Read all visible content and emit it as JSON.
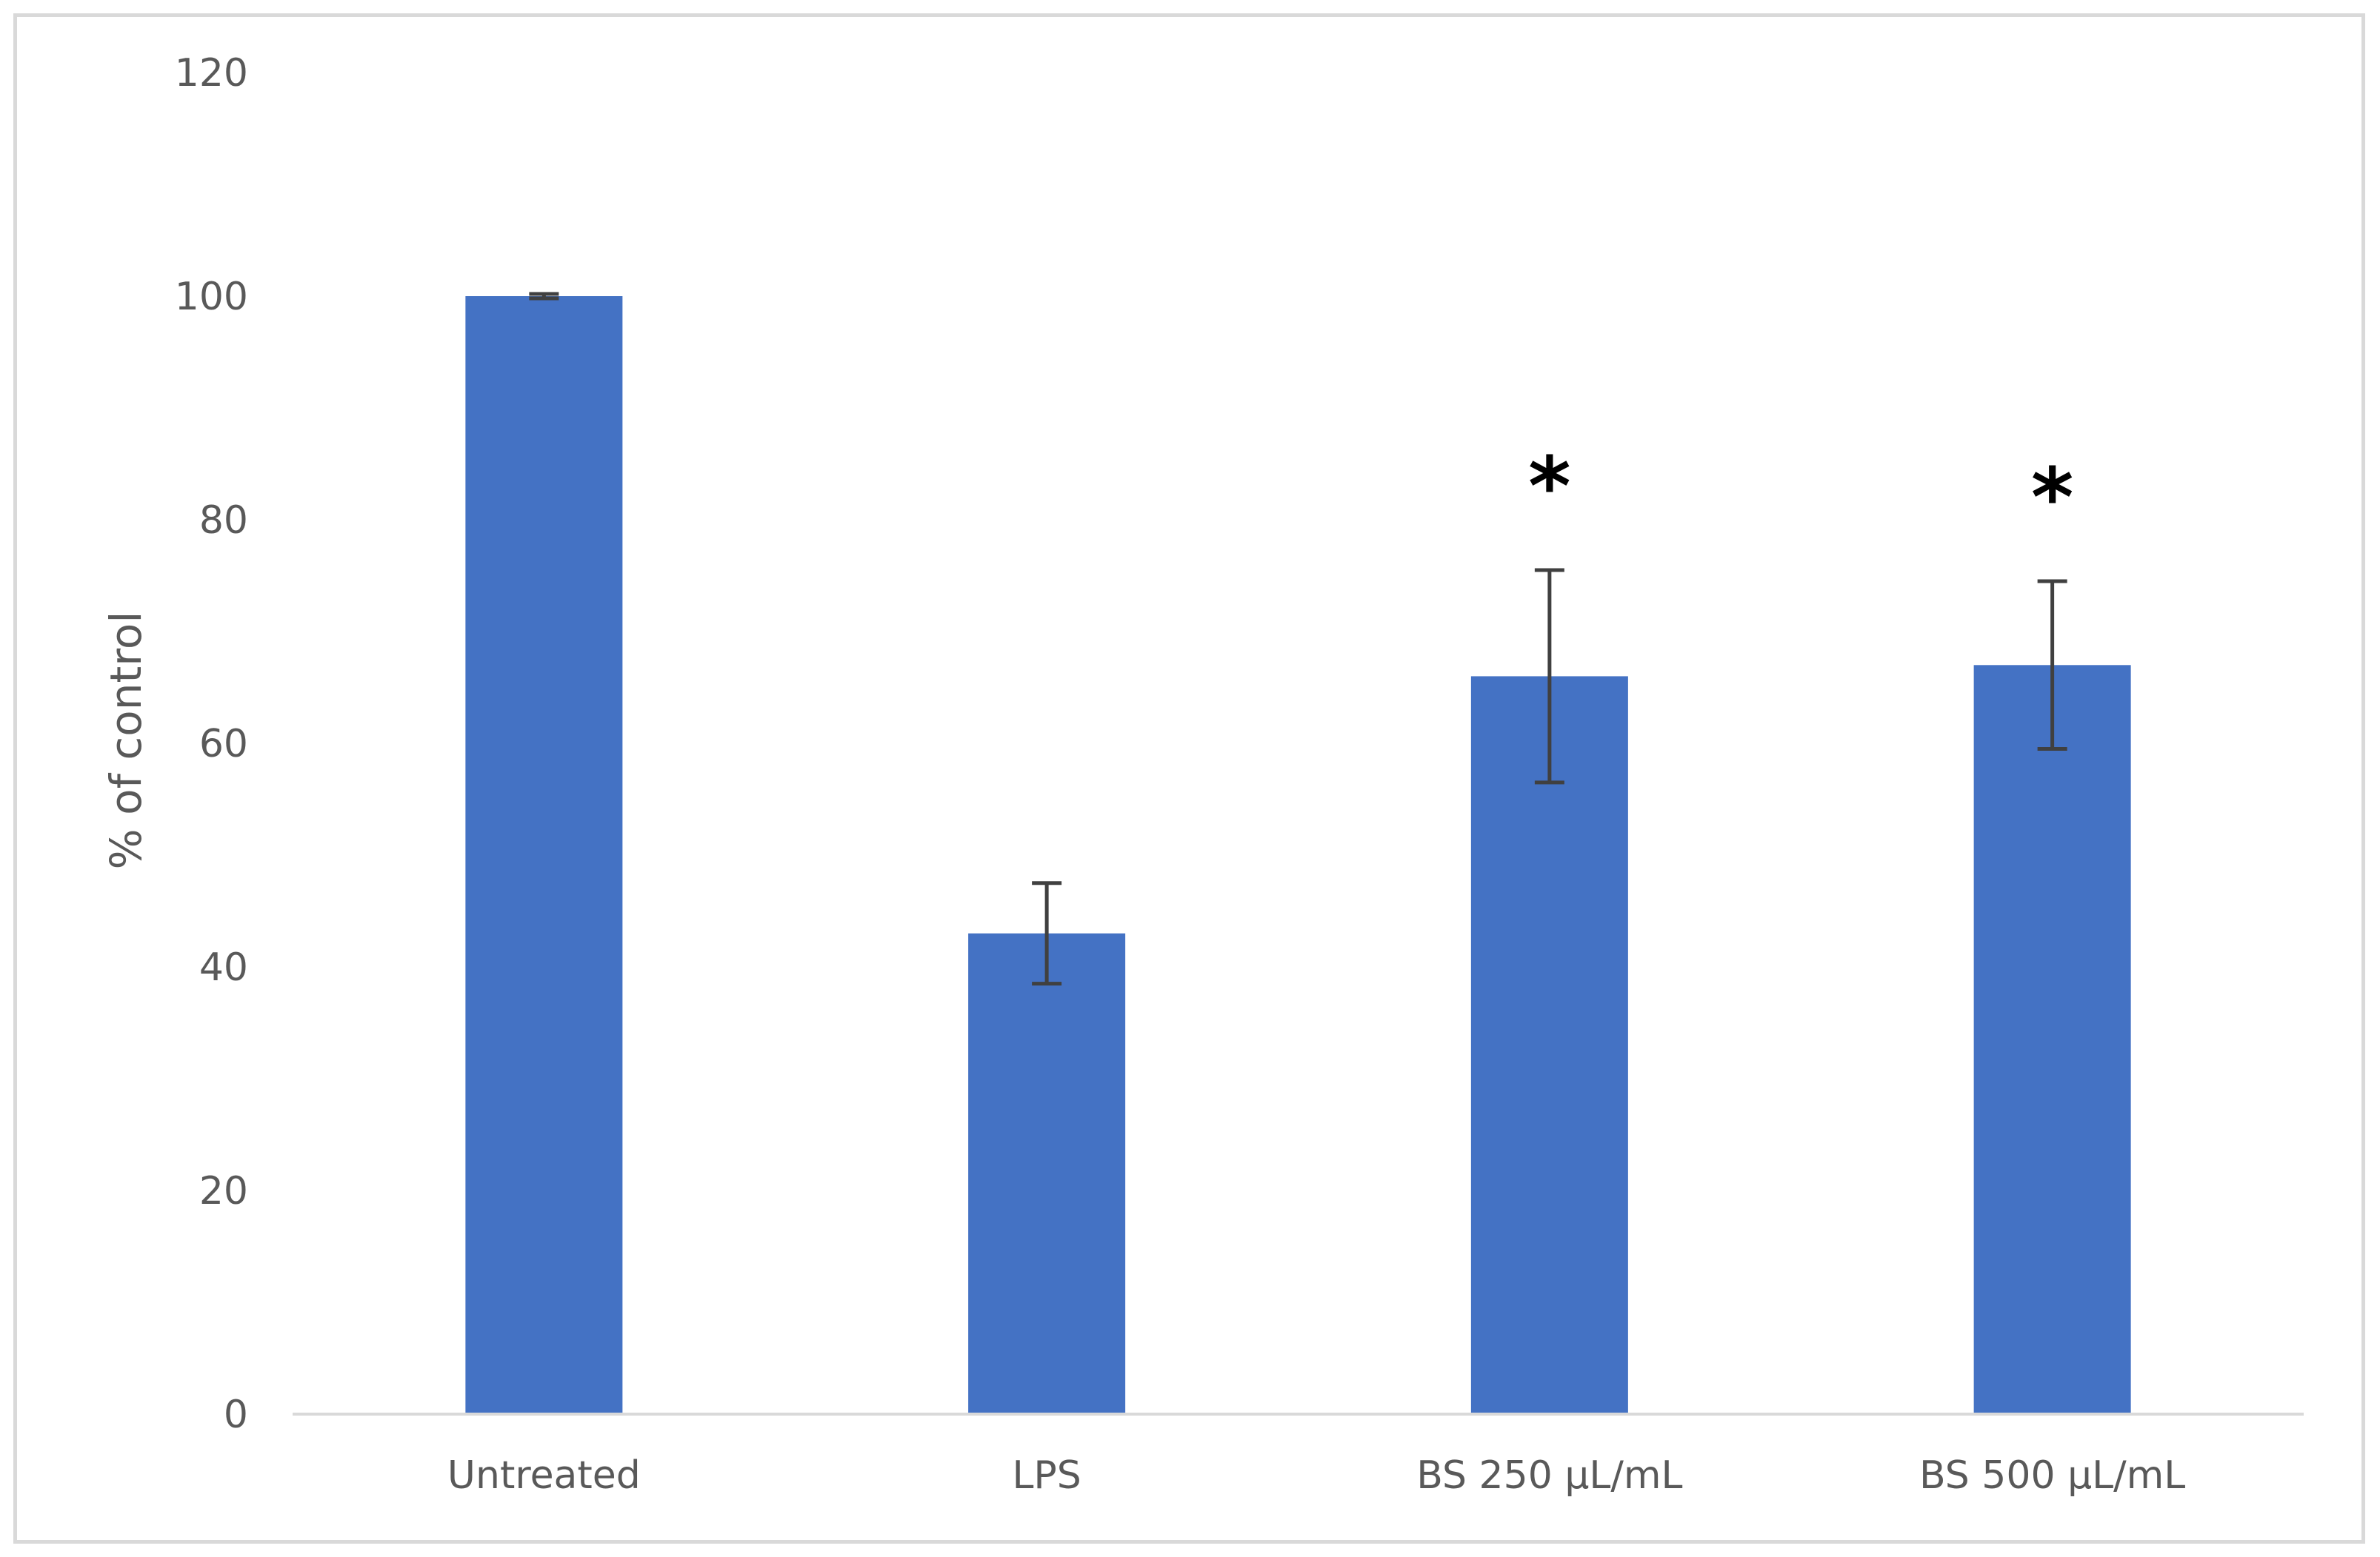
{
  "chart_data": {
    "type": "bar",
    "categories": [
      "Untreated",
      "LPS",
      "BS 250 µL/mL",
      "BS 500 µL/mL"
    ],
    "values": [
      100,
      43,
      66,
      67
    ],
    "error": [
      0.2,
      4.5,
      9.5,
      7.5
    ],
    "annotations": [
      "",
      "",
      "*",
      "*"
    ],
    "title": "",
    "xlabel": "",
    "ylabel": "% of control",
    "ylim": [
      0,
      120
    ],
    "yticks": [
      0,
      20,
      40,
      60,
      80,
      100,
      120
    ],
    "grid": false,
    "legend": "none",
    "colors": {
      "bar": "#4472c4",
      "error_bar": "#404040",
      "axis_line": "#d9d9d9",
      "text": "#595959",
      "frame": "#d9d9d9"
    }
  }
}
